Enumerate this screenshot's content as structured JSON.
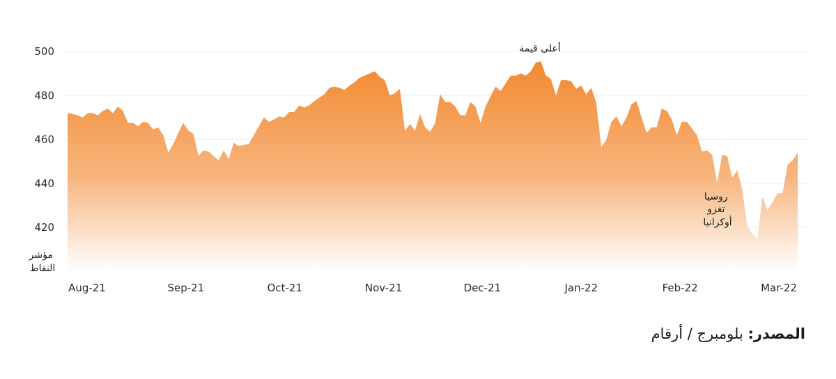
{
  "chart_data": {
    "type": "area",
    "title": "",
    "ylabel_lines": [
      "مؤشر",
      "النقاط"
    ],
    "ylim": [
      400,
      505
    ],
    "yticks": [
      420,
      440,
      460,
      480,
      500
    ],
    "grid": true,
    "fill_color_top": "#f2892f",
    "fill_color_bottom": "#ffffff",
    "x_tick_labels": [
      "Aug-21",
      "Sep-21",
      "Oct-21",
      "Nov-21",
      "Dec-21",
      "Jan-22",
      "Feb-22",
      "Mar-22"
    ],
    "series": [
      {
        "values": [
          472,
          471.6,
          471,
          470,
          472,
          472,
          471,
          473,
          474,
          472,
          475,
          473,
          467.5,
          467.5,
          466,
          468,
          467.5,
          464.5,
          465.5,
          462,
          454,
          458,
          463,
          467.5,
          464,
          462.5,
          452.5,
          455,
          454.5,
          452.5,
          450.5,
          455,
          451,
          458.5,
          457,
          457.5,
          458,
          462,
          466,
          470,
          468,
          469,
          470.5,
          470,
          472.5,
          472.5,
          475.5,
          474.5,
          475.5,
          477.5,
          479,
          480.5,
          483.5,
          484,
          483.5,
          482.5,
          484.5,
          486,
          488,
          489,
          490,
          491,
          488.5,
          487,
          480,
          481,
          483,
          464,
          467,
          464,
          471.5,
          465.5,
          463.5,
          467.5,
          480.5,
          477,
          477,
          475,
          471,
          471,
          477,
          475,
          467.5,
          475,
          479.5,
          484,
          482,
          485.5,
          489,
          489,
          490,
          489,
          491,
          495,
          495.5,
          489,
          487.5,
          480,
          487,
          487,
          486.5,
          483,
          484.5,
          480.5,
          483.5,
          476.5,
          456.5,
          460,
          468,
          470.5,
          466,
          470,
          476,
          477.5,
          470,
          463,
          465.5,
          465.5,
          474,
          473,
          469,
          462,
          468,
          468,
          465,
          462,
          454.5,
          455,
          453,
          440.5,
          453,
          452.5,
          442.5,
          446,
          437,
          420.5,
          417,
          415,
          434,
          428,
          431.5,
          435.5,
          435.5,
          448.5,
          450.5,
          454
        ]
      }
    ],
    "annotations": {
      "peak": "أعلى قيمة",
      "russia_lines": [
        "روسيا",
        "تغزو",
        "أوكرانيا"
      ]
    }
  },
  "source": {
    "label": "المصدر:",
    "text": "بلومبرج / أرقام"
  }
}
